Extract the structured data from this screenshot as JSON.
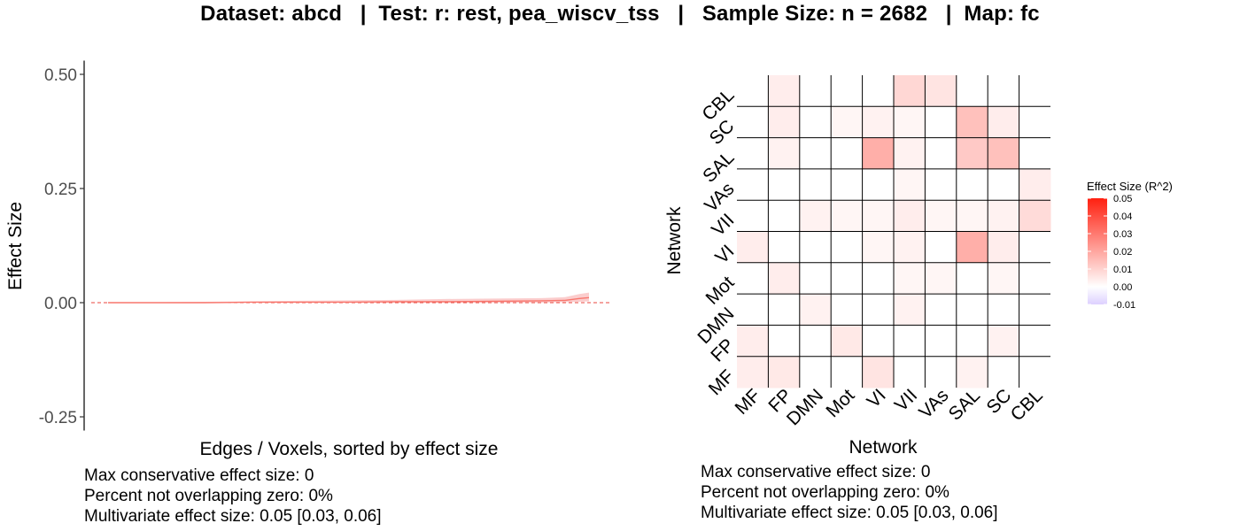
{
  "title": "Dataset: abcd   |  Test: r: rest, pea_wiscv_tss   |   Sample Size: n = 2682   |  Map: fc",
  "chart_data": [
    {
      "type": "line",
      "xlabel": "Edges / Voxels, sorted by effect size",
      "ylabel": "Effect Size",
      "ylim": [
        -0.28,
        0.53
      ],
      "y_ticks": [
        0.5,
        0.25,
        0.0,
        -0.25
      ],
      "y_tick_labels": [
        "0.50",
        "0.25",
        "0.00",
        "-0.25"
      ],
      "reference_line": 0,
      "x": [
        0,
        0.1,
        0.2,
        0.3,
        0.4,
        0.5,
        0.6,
        0.7,
        0.8,
        0.9,
        0.95,
        0.98,
        1.0
      ],
      "series": [
        {
          "values": [
            0.0,
            0.0,
            0.0,
            0.001,
            0.001,
            0.001,
            0.002,
            0.002,
            0.003,
            0.004,
            0.005,
            0.009,
            0.011
          ],
          "lower": [
            0.0,
            0.0,
            0.0,
            0.0,
            0.0,
            0.0,
            0.0,
            0.0,
            0.0,
            0.0,
            0.001,
            0.002,
            0.003
          ],
          "upper": [
            0.0,
            0.001,
            0.002,
            0.003,
            0.004,
            0.005,
            0.006,
            0.008,
            0.009,
            0.01,
            0.012,
            0.019,
            0.022
          ]
        }
      ],
      "colors": {
        "line": "#f8766d",
        "band": "#fbc8c8",
        "ref": "#e8473f"
      },
      "stats": [
        "Max conservative effect size: 0",
        "Percent not overlapping zero: 0%",
        "Multivariate effect size: 0.05 [0.03, 0.06]"
      ]
    },
    {
      "type": "heatmap",
      "xlabel": "Network",
      "ylabel": "Network",
      "categories": [
        "MF",
        "FP",
        "DMN",
        "Mot",
        "VI",
        "VII",
        "VAs",
        "SAL",
        "SC",
        "CBL"
      ],
      "legend_title": "Effect Size (R^2)",
      "legend_ticks": [
        0.05,
        0.04,
        0.03,
        0.02,
        0.01,
        0.0,
        -0.01
      ],
      "legend_tick_labels": [
        "0.05",
        "0.04",
        "0.03",
        "0.02",
        "0.01",
        "0.00",
        "-0.01"
      ],
      "scale": {
        "min": -0.01,
        "mid": 0.0,
        "max": 0.05,
        "low": "#ddd0ff",
        "midColor": "#ffffff",
        "high": "#ff2010"
      },
      "rows_top_to_bottom": [
        "CBL",
        "SC",
        "SAL",
        "VAs",
        "VII",
        "VI",
        "Mot",
        "DMN",
        "FP",
        "MF"
      ],
      "values": [
        [
          0.0,
          0.004,
          0.0,
          0.0,
          0.0,
          0.009,
          0.006,
          0.0,
          0.0,
          0.0
        ],
        [
          0.0,
          0.004,
          0.0,
          0.002,
          0.003,
          0.002,
          0.0,
          0.014,
          0.004,
          0.0
        ],
        [
          0.0,
          0.003,
          0.0,
          0.0,
          0.018,
          0.003,
          0.0,
          0.012,
          0.014,
          0.0
        ],
        [
          0.0,
          0.0,
          0.0,
          0.0,
          0.0,
          0.002,
          0.0,
          0.0,
          0.0,
          0.004
        ],
        [
          0.0,
          0.0,
          0.003,
          0.002,
          0.002,
          0.004,
          0.002,
          0.002,
          0.003,
          0.008
        ],
        [
          0.004,
          0.0,
          0.0,
          0.0,
          0.002,
          0.003,
          0.0,
          0.018,
          0.004,
          0.0
        ],
        [
          0.0,
          0.004,
          0.0,
          0.0,
          0.0,
          0.002,
          0.002,
          0.0,
          0.002,
          0.0
        ],
        [
          0.0,
          0.0,
          0.003,
          0.0,
          0.0,
          0.003,
          0.0,
          0.0,
          0.0,
          0.0
        ],
        [
          0.004,
          0.0,
          0.0,
          0.005,
          0.0,
          0.0,
          0.0,
          0.0,
          0.003,
          0.0
        ],
        [
          0.004,
          0.005,
          0.0,
          0.0,
          0.006,
          0.0,
          0.0,
          0.003,
          0.0,
          0.0
        ]
      ],
      "stats": [
        "Max conservative effect size: 0",
        "Percent not overlapping zero: 0%",
        "Multivariate effect size: 0.05 [0.03, 0.06]"
      ]
    }
  ]
}
